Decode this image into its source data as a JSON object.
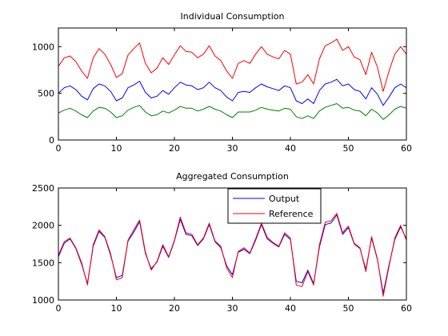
{
  "chart_data": [
    {
      "type": "line",
      "title": "Individual Consumption",
      "xlabel": "",
      "ylabel": "",
      "xlim": [
        0,
        60
      ],
      "ylim": [
        0,
        1200
      ],
      "xticks": [
        0,
        10,
        20,
        30,
        40,
        50,
        60
      ],
      "yticks": [
        0,
        500,
        1000
      ],
      "grid": false,
      "x": [
        0,
        1,
        2,
        3,
        4,
        5,
        6,
        7,
        8,
        9,
        10,
        11,
        12,
        13,
        14,
        15,
        16,
        17,
        18,
        19,
        20,
        21,
        22,
        23,
        24,
        25,
        26,
        27,
        28,
        29,
        30,
        31,
        32,
        33,
        34,
        35,
        36,
        37,
        38,
        39,
        40,
        41,
        42,
        43,
        44,
        45,
        46,
        47,
        48,
        49,
        50,
        51,
        52,
        53,
        54,
        55,
        56,
        57,
        58,
        59,
        60
      ],
      "series": [
        {
          "color": "#ff0000",
          "values": [
            790,
            880,
            900,
            840,
            740,
            660,
            880,
            980,
            920,
            810,
            670,
            710,
            910,
            980,
            1040,
            820,
            720,
            770,
            880,
            810,
            910,
            1010,
            950,
            940,
            880,
            920,
            1010,
            900,
            850,
            740,
            660,
            820,
            850,
            820,
            920,
            1000,
            920,
            890,
            870,
            960,
            920,
            600,
            620,
            700,
            600,
            870,
            1010,
            1040,
            1080,
            960,
            1000,
            890,
            860,
            700,
            940,
            780,
            520,
            740,
            920,
            1000,
            920
          ]
        },
        {
          "color": "#0000ff",
          "values": [
            500,
            560,
            580,
            540,
            470,
            430,
            550,
            600,
            580,
            520,
            420,
            450,
            560,
            590,
            630,
            510,
            450,
            470,
            530,
            490,
            560,
            620,
            590,
            580,
            540,
            560,
            620,
            560,
            530,
            460,
            420,
            510,
            520,
            510,
            560,
            600,
            570,
            550,
            530,
            580,
            560,
            420,
            390,
            440,
            390,
            530,
            600,
            620,
            650,
            580,
            600,
            540,
            520,
            440,
            560,
            490,
            370,
            460,
            560,
            600,
            560
          ]
        },
        {
          "color": "#008000",
          "values": [
            290,
            320,
            340,
            310,
            270,
            240,
            310,
            350,
            340,
            300,
            240,
            260,
            320,
            350,
            370,
            300,
            260,
            270,
            310,
            290,
            320,
            360,
            340,
            340,
            310,
            330,
            360,
            330,
            310,
            270,
            240,
            300,
            300,
            300,
            320,
            350,
            330,
            320,
            310,
            340,
            330,
            250,
            230,
            260,
            230,
            310,
            350,
            370,
            390,
            340,
            350,
            320,
            310,
            260,
            330,
            290,
            220,
            270,
            330,
            360,
            340
          ]
        }
      ]
    },
    {
      "type": "line",
      "title": "Aggregated Consumption",
      "xlabel": "",
      "ylabel": "",
      "xlim": [
        0,
        60
      ],
      "ylim": [
        1000,
        2500
      ],
      "xticks": [
        0,
        10,
        20,
        30,
        40,
        50,
        60
      ],
      "yticks": [
        1000,
        1500,
        2000,
        2500
      ],
      "grid": false,
      "legend": "top-center",
      "x": [
        0,
        1,
        2,
        3,
        4,
        5,
        6,
        7,
        8,
        9,
        10,
        11,
        12,
        13,
        14,
        15,
        16,
        17,
        18,
        19,
        20,
        21,
        22,
        23,
        24,
        25,
        26,
        27,
        28,
        29,
        30,
        31,
        32,
        33,
        34,
        35,
        36,
        37,
        38,
        39,
        40,
        41,
        42,
        43,
        44,
        45,
        46,
        47,
        48,
        49,
        50,
        51,
        52,
        53,
        54,
        55,
        56,
        57,
        58,
        59,
        60
      ],
      "series": [
        {
          "name": "Output",
          "color": "#0000ff",
          "values": [
            1580,
            1760,
            1820,
            1690,
            1480,
            1220,
            1720,
            1920,
            1840,
            1600,
            1300,
            1330,
            1790,
            1910,
            2050,
            1620,
            1420,
            1510,
            1720,
            1570,
            1790,
            2080,
            1880,
            1860,
            1730,
            1820,
            2010,
            1780,
            1700,
            1460,
            1340,
            1640,
            1680,
            1620,
            1800,
            2010,
            1820,
            1760,
            1710,
            1880,
            1810,
            1250,
            1230,
            1400,
            1220,
            1710,
            2010,
            2030,
            2140,
            1880,
            1970,
            1750,
            1690,
            1410,
            1830,
            1540,
            1090,
            1470,
            1810,
            1980,
            1820
          ]
        },
        {
          "name": "Reference",
          "color": "#ff0000",
          "values": [
            1600,
            1780,
            1830,
            1700,
            1500,
            1200,
            1740,
            1940,
            1850,
            1620,
            1270,
            1300,
            1800,
            1940,
            2070,
            1640,
            1400,
            1520,
            1740,
            1580,
            1800,
            2110,
            1900,
            1880,
            1740,
            1830,
            2030,
            1790,
            1720,
            1430,
            1300,
            1650,
            1700,
            1630,
            1820,
            2030,
            1840,
            1770,
            1720,
            1900,
            1830,
            1200,
            1180,
            1380,
            1200,
            1740,
            2040,
            2060,
            2160,
            1900,
            1990,
            1760,
            1700,
            1380,
            1850,
            1550,
            1050,
            1450,
            1830,
            2000,
            1800
          ]
        }
      ]
    }
  ]
}
